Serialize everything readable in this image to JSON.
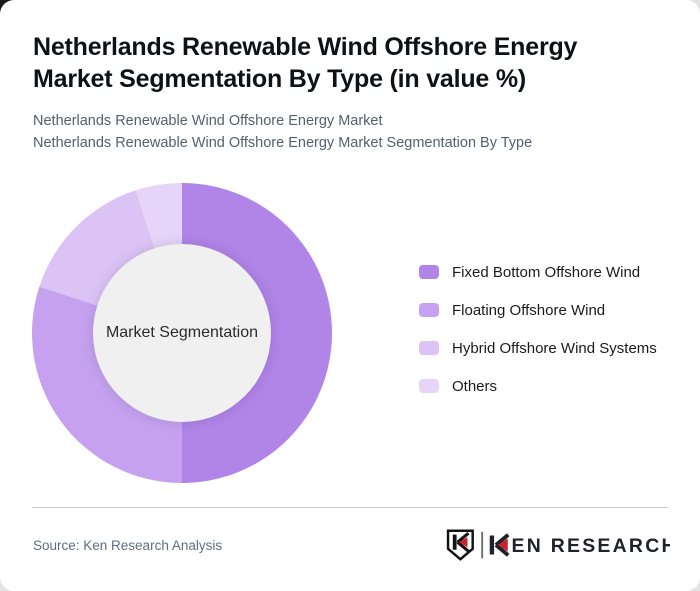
{
  "header": {
    "title_line1": "Netherlands Renewable Wind Offshore Energy",
    "title_line2": "Market Segmentation By Type (in value %)",
    "subtitle_line1": "Netherlands Renewable Wind Offshore Energy Market",
    "subtitle_line2": "Netherlands Renewable Wind Offshore Energy Market Segmentation By Type"
  },
  "chart_data": {
    "type": "pie",
    "variant": "donut",
    "title": "Netherlands Renewable Wind Offshore Energy Market Segmentation By Type (in value %)",
    "center_label": "Market Segmentation",
    "categories": [
      "Fixed Bottom Offshore Wind",
      "Floating Offshore Wind",
      "Hybrid Offshore Wind Systems",
      "Others"
    ],
    "values": [
      50,
      30,
      15,
      5
    ],
    "unit": "percent (estimated from arc angles; no data labels shown)",
    "colors": [
      "#b184e8",
      "#c5a1f0",
      "#dbc3f6",
      "#e6d4f9"
    ],
    "start_angle_deg": 0,
    "direction": "clockwise",
    "legend_position": "right",
    "hole_color": "#f0f0f0"
  },
  "footer": {
    "source_text": "Source: Ken Research Analysis",
    "logo_text": "KEN RESEARCH",
    "logo_wordmark_rest": "EN RESEARCH",
    "logo_accent_color": "#c4282e"
  }
}
